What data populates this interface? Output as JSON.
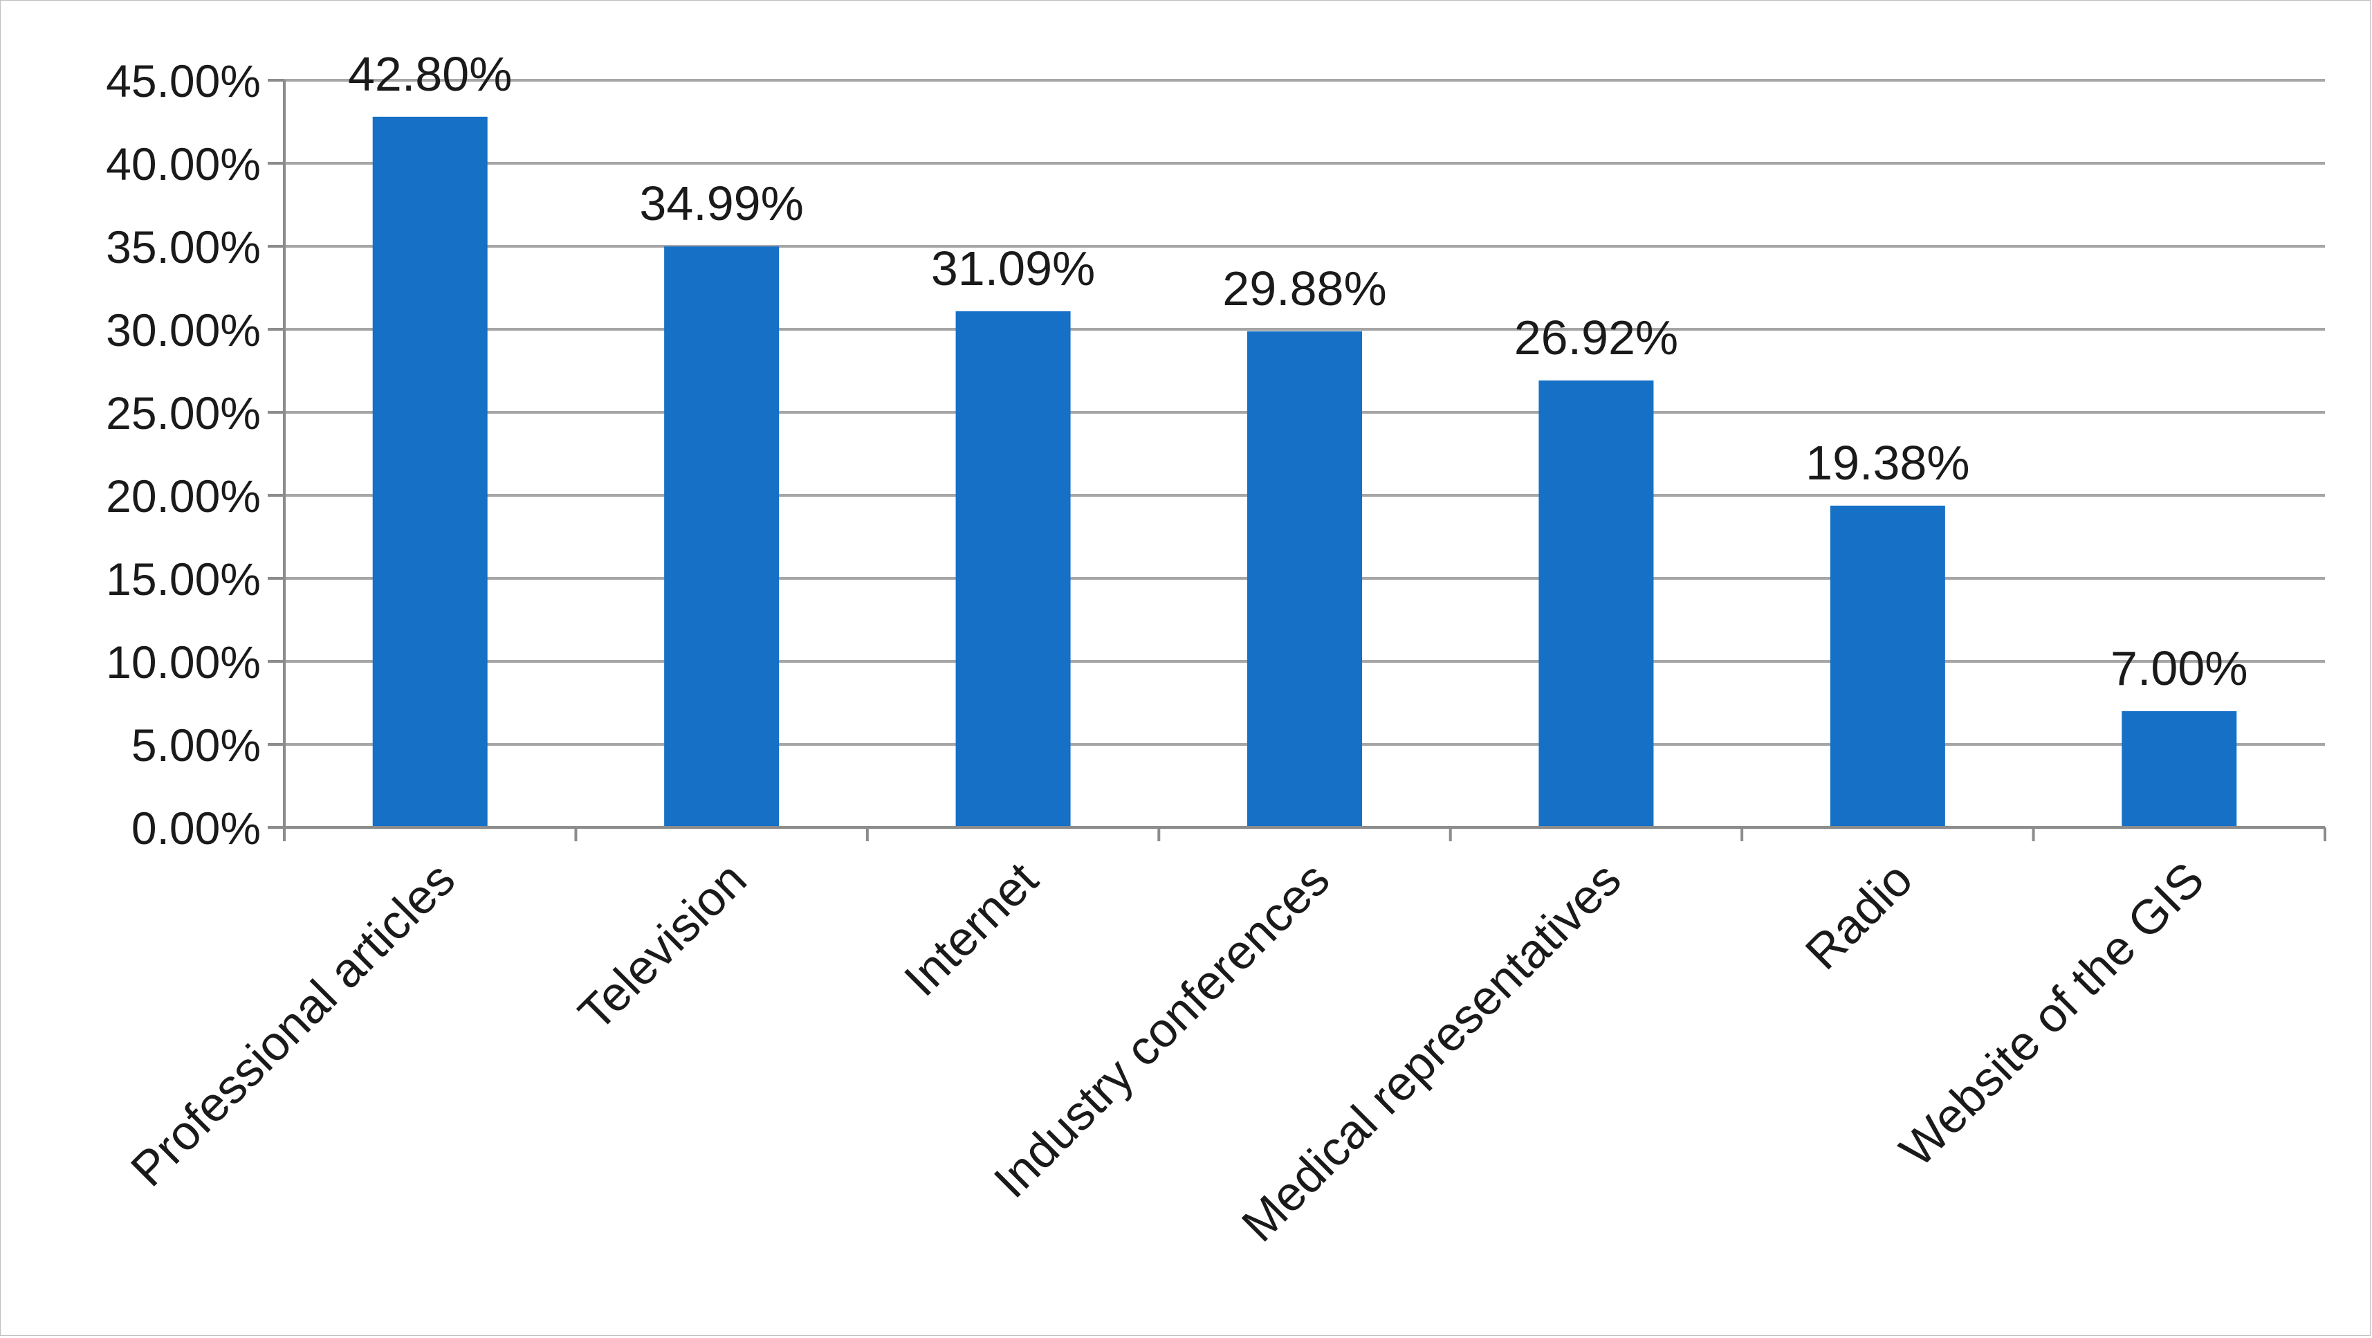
{
  "chart_data": {
    "type": "bar",
    "categories": [
      "Professional articles",
      "Television",
      "Internet",
      "Industry conferences",
      "Medical representatives",
      "Radio",
      "Website of the GIS"
    ],
    "values": [
      42.8,
      34.99,
      31.09,
      29.88,
      26.92,
      19.38,
      7.0
    ],
    "data_labels": [
      "42.80%",
      "34.99%",
      "31.09%",
      "29.88%",
      "26.92%",
      "19.38%",
      "7.00%"
    ],
    "y_ticks": [
      0,
      5,
      10,
      15,
      20,
      25,
      30,
      35,
      40,
      45
    ],
    "y_tick_labels": [
      "0.00%",
      "5.00%",
      "10.00%",
      "15.00%",
      "20.00%",
      "25.00%",
      "30.00%",
      "35.00%",
      "40.00%",
      "45.00%"
    ],
    "ylim": [
      0,
      45
    ],
    "grid": true,
    "legend": "none",
    "colors": {
      "bar": "#1570c6",
      "grid": "#a6a6a6",
      "axis": "#8c8c8c"
    }
  }
}
